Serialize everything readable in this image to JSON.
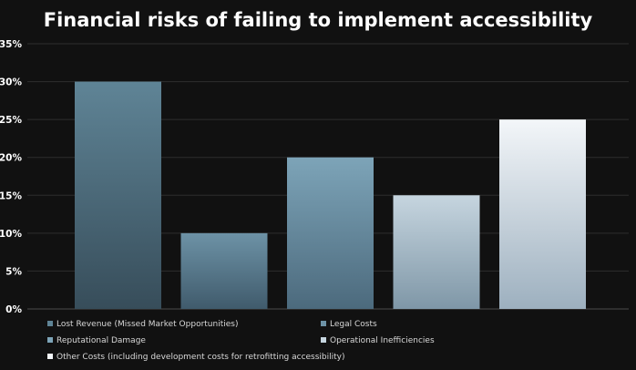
{
  "chart_data": {
    "type": "bar",
    "title": "Financial risks of failing to implement accessibility",
    "xlabel": "",
    "ylabel": "",
    "ylim": [
      0,
      35
    ],
    "yticks": [
      "0%",
      "5%",
      "10%",
      "15%",
      "20%",
      "25%",
      "30%",
      "35%"
    ],
    "ytick_values": [
      0,
      5,
      10,
      15,
      20,
      25,
      30,
      35
    ],
    "grid": true,
    "legend_position": "bottom",
    "series": [
      {
        "name": "Lost Revenue (Missed Market Opportunities)",
        "value": 30,
        "color_top": "#5f8496",
        "color_bottom": "#374d5a"
      },
      {
        "name": "Legal Costs",
        "value": 10,
        "color_top": "#6d92a6",
        "color_bottom": "#405b6c"
      },
      {
        "name": "Reputational Damage",
        "value": 20,
        "color_top": "#7da4b8",
        "color_bottom": "#4c6a7d"
      },
      {
        "name": "Operational Inefficiencies",
        "value": 15,
        "color_top": "#c6d5df",
        "color_bottom": "#7f97a7"
      },
      {
        "name": "Other Costs (including development costs for retrofitting accessibility)",
        "value": 25,
        "color_top": "#f3f6f9",
        "color_bottom": "#9db0bf"
      }
    ]
  }
}
